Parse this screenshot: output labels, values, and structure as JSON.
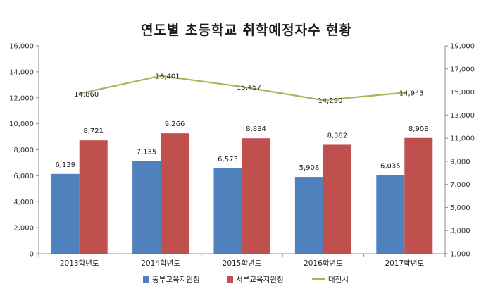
{
  "chart_data": {
    "type": "bar",
    "title": "연도별 초등학교 취학예정자수 현황",
    "categories": [
      "2013학년도",
      "2014학년도",
      "2015학년도",
      "2016학년도",
      "2017학년도"
    ],
    "series": [
      {
        "name": "동부교육지원청",
        "type": "bar",
        "axis": "left",
        "color": "#4f81bd",
        "values": [
          6139,
          7135,
          6573,
          5908,
          6035
        ],
        "labels": [
          "6,139",
          "7,135",
          "6,573",
          "5,908",
          "6,035"
        ]
      },
      {
        "name": "서부교육지원청",
        "type": "bar",
        "axis": "left",
        "color": "#c0504d",
        "values": [
          8721,
          9266,
          8884,
          8382,
          8908
        ],
        "labels": [
          "8,721",
          "9,266",
          "8,884",
          "8,382",
          "8,908"
        ]
      },
      {
        "name": "대전시",
        "type": "line",
        "axis": "right",
        "color": "#9bbb59",
        "values": [
          14860,
          16401,
          15457,
          14290,
          14943
        ],
        "labels": [
          "14,860",
          "16,401",
          "15,457",
          "14,290",
          "14,943"
        ]
      }
    ],
    "y_left": {
      "min": 0,
      "max": 16000,
      "ticks": [
        "0",
        "2,000",
        "4,000",
        "6,000",
        "8,000",
        "10,000",
        "12,000",
        "14,000",
        "16,000"
      ]
    },
    "y_right": {
      "min": 1000,
      "max": 19000,
      "ticks": [
        "1,000",
        "3,000",
        "5,000",
        "7,000",
        "9,000",
        "11,000",
        "13,000",
        "15,000",
        "17,000",
        "19,000"
      ]
    },
    "legend_position": "bottom",
    "grid": false
  }
}
